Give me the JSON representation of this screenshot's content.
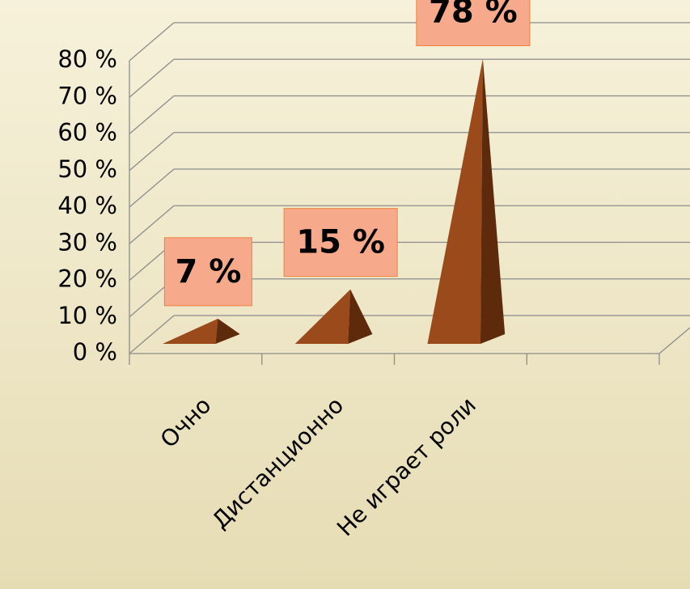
{
  "chart_data": {
    "type": "pyramid3d",
    "categories": [
      "Очно",
      "Дистанционно",
      "Не играет роли"
    ],
    "values": [
      7,
      15,
      78
    ],
    "value_labels": [
      "7 %",
      "15 %",
      "78 %"
    ],
    "color": "#9a4a1b",
    "ylim": [
      0,
      80
    ],
    "yticks": [
      {
        "value": 0,
        "label": "0 %"
      },
      {
        "value": 10,
        "label": "10 %"
      },
      {
        "value": 20,
        "label": "20 %"
      },
      {
        "value": 30,
        "label": "30 %"
      },
      {
        "value": 40,
        "label": "40 %"
      },
      {
        "value": 50,
        "label": "50 %"
      },
      {
        "value": 60,
        "label": "60 %"
      },
      {
        "value": 70,
        "label": "70 %"
      },
      {
        "value": 80,
        "label": "80 %"
      }
    ],
    "grid": true
  }
}
